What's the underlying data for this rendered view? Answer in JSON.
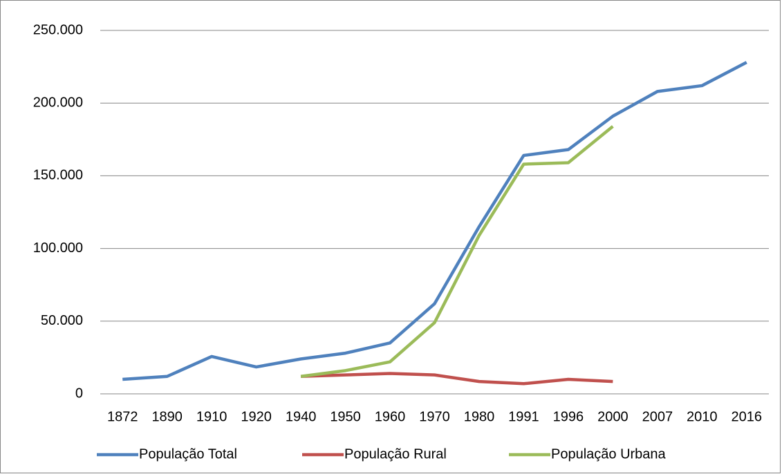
{
  "chart_data": {
    "type": "line",
    "categories": [
      "1872",
      "1890",
      "1910",
      "1920",
      "1940",
      "1950",
      "1960",
      "1970",
      "1980",
      "1991",
      "1996",
      "2000",
      "2007",
      "2010",
      "2016"
    ],
    "series": [
      {
        "name": "População Total",
        "color": "#4f81bd",
        "values": [
          10000,
          12000,
          25700,
          18500,
          24000,
          28000,
          35000,
          62000,
          115000,
          164000,
          168000,
          191000,
          208000,
          212000,
          228000
        ]
      },
      {
        "name": "População Rural",
        "color": "#c0504d",
        "values": [
          null,
          null,
          null,
          null,
          12000,
          13000,
          14000,
          13000,
          8500,
          7000,
          10000,
          8500,
          null,
          null,
          null
        ]
      },
      {
        "name": "População Urbana",
        "color": "#9bbb59",
        "values": [
          null,
          null,
          null,
          null,
          12000,
          16000,
          22000,
          49000,
          109000,
          158000,
          159000,
          184000,
          null,
          null,
          null
        ]
      }
    ],
    "ylim": [
      0,
      250000
    ],
    "yticks": [
      0,
      {
        "value": 50000,
        "label": "50.000"
      },
      {
        "value": 100000,
        "label": "100.000"
      },
      {
        "value": 150000,
        "label": "150.000"
      },
      {
        "value": 200000,
        "label": "200.000"
      },
      {
        "value": 250000,
        "label": "250.000"
      }
    ],
    "grid": true,
    "legend": "bottom"
  }
}
